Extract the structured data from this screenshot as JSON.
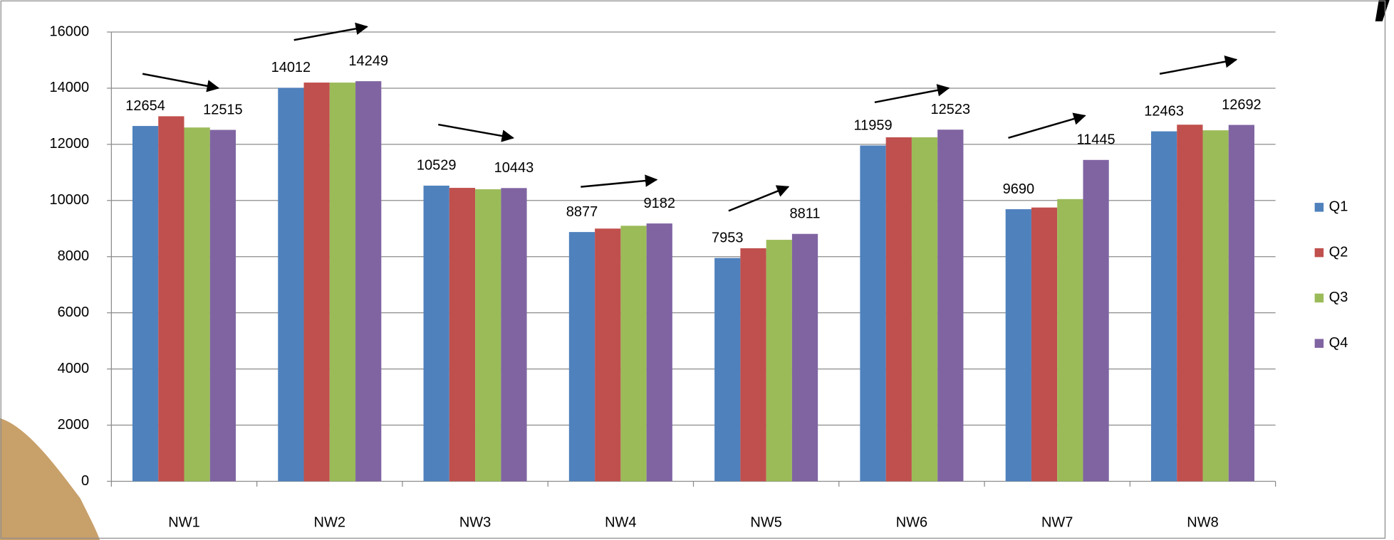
{
  "chart_data": {
    "type": "bar",
    "categories": [
      "NW1",
      "NW2",
      "NW3",
      "NW4",
      "NW5",
      "NW6",
      "NW7",
      "NW8"
    ],
    "series": [
      {
        "name": "Q1",
        "color": "#4f81bd",
        "values": [
          12654,
          14012,
          10529,
          8877,
          7953,
          11959,
          9690,
          12463
        ],
        "labeled": true
      },
      {
        "name": "Q2",
        "color": "#c0504d",
        "values": [
          13000,
          14200,
          10450,
          9000,
          8300,
          12250,
          9750,
          12700
        ],
        "labeled": false
      },
      {
        "name": "Q3",
        "color": "#9bbb59",
        "values": [
          12600,
          14200,
          10400,
          9100,
          8600,
          12250,
          10050,
          12500
        ],
        "labeled": false
      },
      {
        "name": "Q4",
        "color": "#8064a2",
        "values": [
          12515,
          14249,
          10443,
          9182,
          8811,
          12523,
          11445,
          12692
        ],
        "labeled": true
      }
    ],
    "ylim": [
      0,
      16000
    ],
    "yticks": [
      0,
      2000,
      4000,
      6000,
      8000,
      10000,
      12000,
      14000,
      16000
    ],
    "grid": true,
    "legend": "right"
  }
}
